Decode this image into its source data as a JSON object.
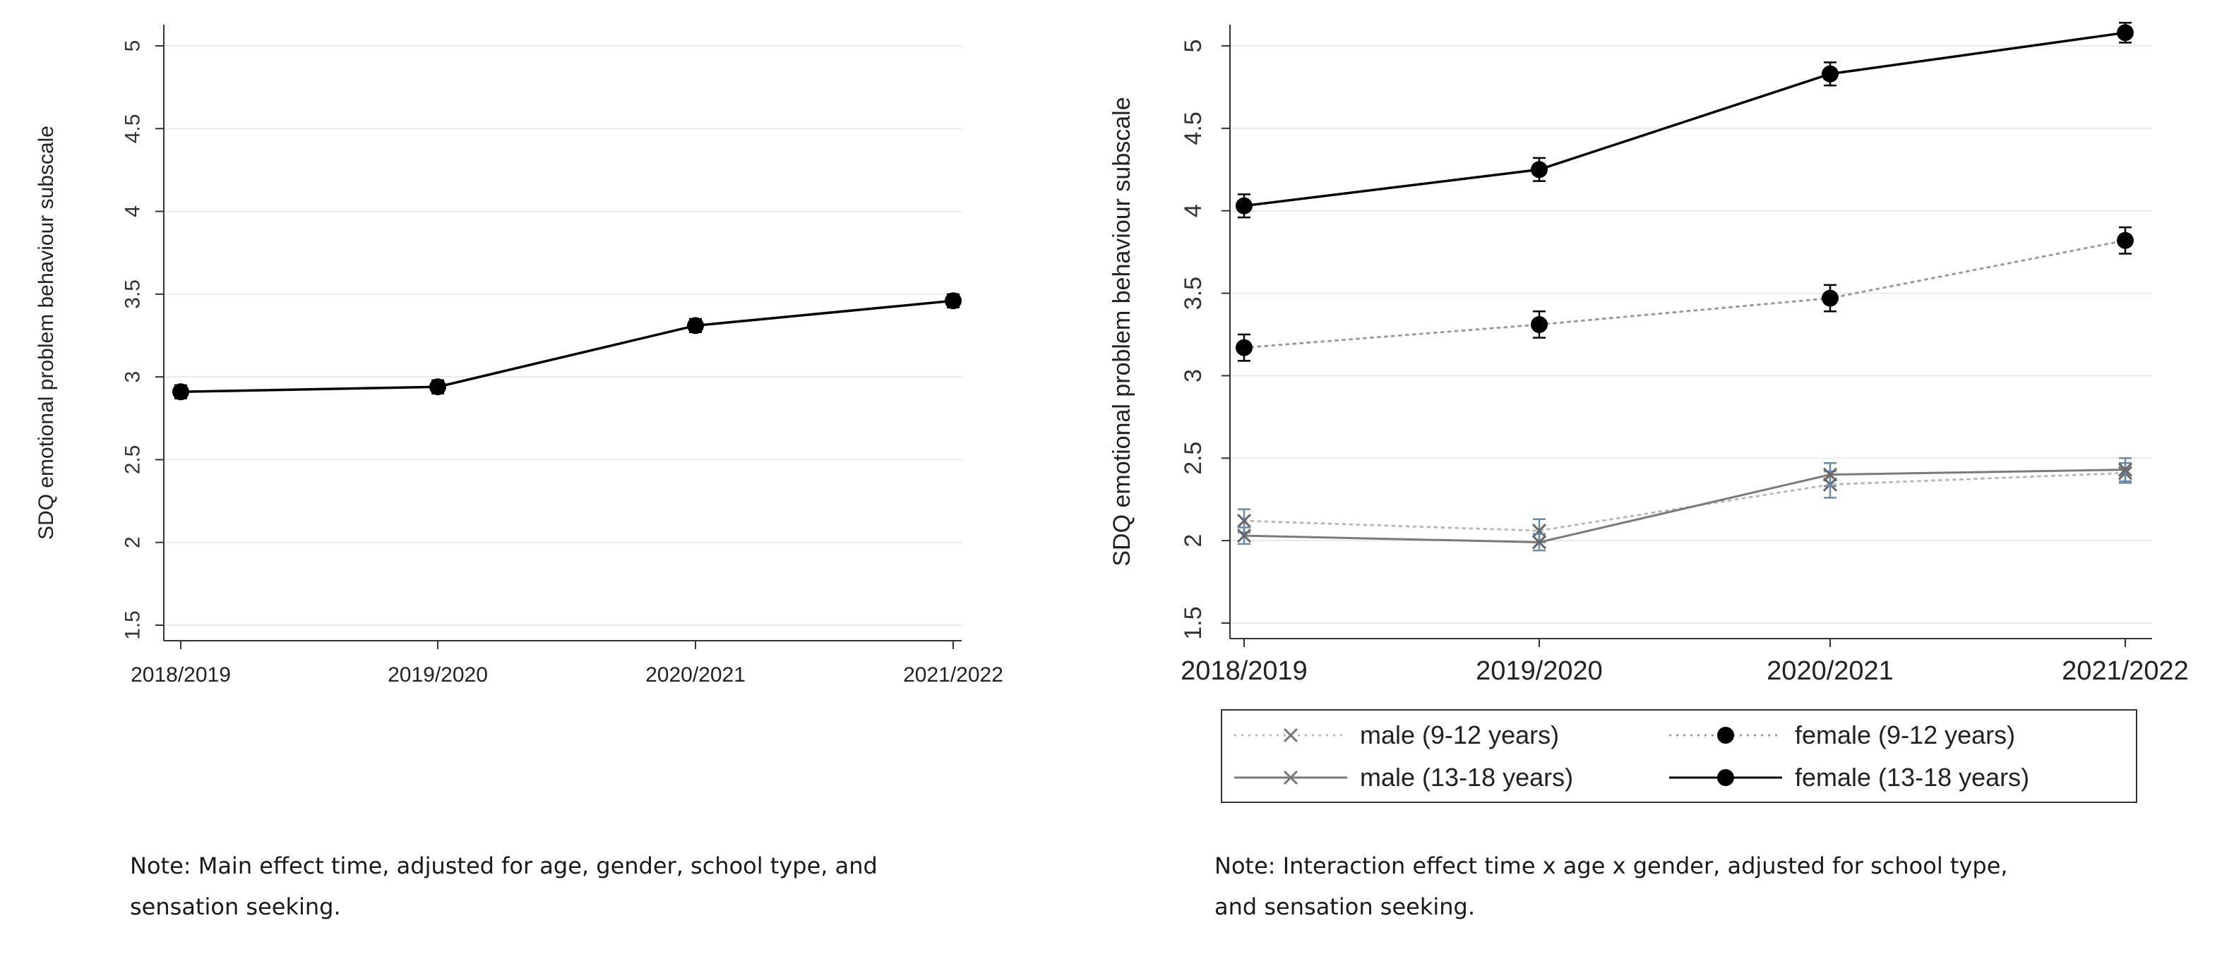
{
  "chart_data": [
    {
      "type": "line",
      "ylabel": "SDQ emotional problem behaviour subscale",
      "xlabel": "",
      "categories": [
        "2018/2019",
        "2019/2020",
        "2020/2021",
        "2021/2022"
      ],
      "ylim": [
        1.5,
        5
      ],
      "yticks": [
        "1.5",
        "2",
        "2.5",
        "3",
        "3.5",
        "4",
        "4.5",
        "5"
      ],
      "grid": true,
      "series": [
        {
          "values": [
            2.91,
            2.94,
            3.31,
            3.46
          ],
          "ci": [
            0.04,
            0.04,
            0.04,
            0.04
          ],
          "style": "solid",
          "marker": "dot",
          "color": "#000000"
        }
      ],
      "note": [
        "Note:  Main effect time, adjusted for age, gender, school type, and",
        "sensation seeking."
      ]
    },
    {
      "type": "line",
      "ylabel": "SDQ emotional problem behaviour subscale",
      "xlabel": "",
      "categories": [
        "2018/2019",
        "2019/2020",
        "2020/2021",
        "2021/2022"
      ],
      "ylim": [
        1.5,
        5
      ],
      "yticks": [
        "1.5",
        "2",
        "2.5",
        "3",
        "3.5",
        "4",
        "4.5",
        "5"
      ],
      "grid": true,
      "legend_position": "bottom",
      "series": [
        {
          "name": "male (9-12 years)",
          "values": [
            2.12,
            2.06,
            2.34,
            2.41
          ],
          "ci": [
            0.07,
            0.07,
            0.08,
            0.06
          ],
          "style": "dotted",
          "marker": "x",
          "color": "#b9b9b9"
        },
        {
          "name": "female (9-12 years)",
          "values": [
            3.17,
            3.31,
            3.47,
            3.82
          ],
          "ci": [
            0.08,
            0.08,
            0.08,
            0.08
          ],
          "style": "dotted",
          "marker": "dot",
          "color": "#9a9a9a"
        },
        {
          "name": "male (13-18 years)",
          "values": [
            2.03,
            1.99,
            2.4,
            2.43
          ],
          "ci": [
            0.05,
            0.05,
            0.07,
            0.07
          ],
          "style": "solid",
          "marker": "x",
          "color": "#7a7a7a"
        },
        {
          "name": "female (13-18 years)",
          "values": [
            4.03,
            4.25,
            4.83,
            5.08
          ],
          "ci": [
            0.07,
            0.07,
            0.07,
            0.06
          ],
          "style": "solid",
          "marker": "dot",
          "color": "#000000"
        }
      ],
      "note": [
        "Note:  Interaction effect time x age x gender,  adjusted for school type,",
        "and sensation seeking."
      ]
    }
  ]
}
